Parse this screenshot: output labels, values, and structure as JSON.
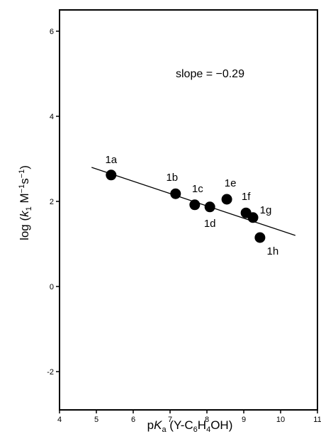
{
  "chart_data": {
    "type": "scatter",
    "annotation": "slope = −0.29",
    "x_label": [
      "p",
      "K",
      "a",
      " (Y-C",
      "6",
      "H",
      "4",
      "OH)"
    ],
    "y_label": [
      "log (",
      "k",
      "1",
      " M",
      "−1",
      "s",
      "−1",
      ")"
    ],
    "series": [
      {
        "names": [
          "1a",
          "1b",
          "1c",
          "1d",
          "1e",
          "1f",
          "1g",
          "1h"
        ],
        "color": "#000000",
        "x": [
          5.4,
          7.15,
          7.67,
          8.08,
          8.54,
          9.06,
          9.25,
          9.44
        ],
        "values": [
          2.62,
          2.18,
          1.92,
          1.87,
          2.05,
          1.73,
          1.62,
          1.15
        ]
      }
    ],
    "fit_line": {
      "x": [
        4.87,
        10.4
      ],
      "values": [
        2.8,
        1.2
      ]
    },
    "xlim": [
      4,
      11
    ],
    "ylim": [
      -2.9,
      6.5
    ],
    "xticks": [
      4,
      5,
      6,
      7,
      8,
      9,
      10,
      11
    ],
    "yticks": [
      -2,
      0,
      2,
      4,
      6
    ],
    "grid": false
  }
}
